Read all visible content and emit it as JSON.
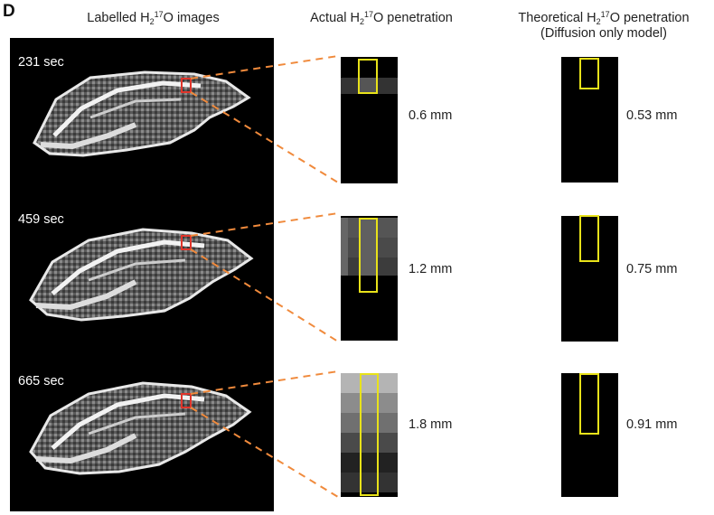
{
  "panel_letter": "D",
  "headers": {
    "labelled_pre": "Labelled H",
    "labelled_sub": "2",
    "labelled_sup": "17",
    "labelled_post": "O images",
    "actual_pre": "Actual H",
    "actual_sub": "2",
    "actual_sup": "17",
    "actual_post": "O penetration",
    "theoretical_pre": "Theoretical H",
    "theoretical_sub": "2",
    "theoretical_sup": "17",
    "theoretical_post": "O penetration",
    "theoretical_line2": "(Diffusion only model)"
  },
  "rows": [
    {
      "time": "231 sec",
      "actual": "0.6 mm",
      "theoretical": "0.53 mm"
    },
    {
      "time": "459 sec",
      "actual": "1.2 mm",
      "theoretical": "0.75 mm"
    },
    {
      "time": "665 sec",
      "actual": "1.8 mm",
      "theoretical": "0.91 mm"
    }
  ],
  "colors": {
    "background_panel": "#000000",
    "roi_box": "#e0352b",
    "penetration_box": "#e8e21a",
    "connector_lines": "#f08a3c"
  }
}
